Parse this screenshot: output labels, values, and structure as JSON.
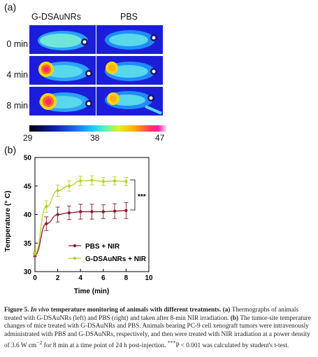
{
  "panel_a": {
    "label": "(a)",
    "columns": [
      "G-DSAuNRs",
      "PBS"
    ],
    "rows": [
      "0 min",
      "4 min",
      "8 min"
    ],
    "colorbar": {
      "min": "29",
      "mid": "38",
      "max": "47"
    },
    "colors": {
      "background": "#1b1dd8",
      "hot": "#ff2a6a",
      "warm": "#ffd21a"
    }
  },
  "panel_b": {
    "label": "(b)",
    "significance": "***"
  },
  "chart_data": {
    "type": "line",
    "xlabel": "Time (min)",
    "ylabel": "Temperature (° C)",
    "xlim": [
      0,
      10
    ],
    "ylim": [
      30,
      50
    ],
    "xticks": [
      "0",
      "2",
      "4",
      "6",
      "8",
      "10"
    ],
    "yticks": [
      "30",
      "35",
      "40",
      "45",
      "50"
    ],
    "legend_position": "lower-right",
    "series": [
      {
        "name": "PBS + NIR",
        "color": "#8b1a2a",
        "x": [
          0,
          1,
          2,
          3,
          4,
          5,
          6,
          7,
          8
        ],
        "y": [
          32.9,
          38.4,
          40.0,
          40.3,
          40.5,
          40.5,
          40.5,
          40.6,
          40.7
        ],
        "err": [
          0.3,
          1.2,
          1.3,
          1.2,
          1.3,
          1.3,
          1.2,
          1.3,
          1.4
        ]
      },
      {
        "name": "G-DSAuNRs + NIR",
        "color": "#b7cf2a",
        "x": [
          0,
          1,
          2,
          3,
          4,
          5,
          6,
          7,
          8
        ],
        "y": [
          33.2,
          41.4,
          44.2,
          45.0,
          45.9,
          46.0,
          45.8,
          45.9,
          45.8
        ],
        "err": [
          0.3,
          1.0,
          1.0,
          0.9,
          0.8,
          0.8,
          0.7,
          0.7,
          0.7
        ]
      }
    ]
  },
  "caption": {
    "figure_label": "Figure 5.",
    "title_italic": "In vivo",
    "title_rest": "temperature monitoring of animals with different treatments.",
    "s1_label": "(a)",
    "s1_text": "Thermographs of animals treated with G-DSAuNRs (left) and PBS (right) and taken after 8-min NIR irradiation.",
    "s2_label": "(b)",
    "s2_text": "The tumor-site temperature changes of mice treated with G-DSAuNRs and PBS. Animals bearing PC-9 cell xenograft tumors were intravenously administrated with PBS and G-DSAuNRs, respectively, and then were treated with NIR irradiation at a power density of 3.6 W cm",
    "s2_sup": "−2",
    "s2_text2": "for 8 min at a time point of 24 h post-injection.",
    "stat_sup": "***",
    "stat_text": "P < 0.001 was calculated by student's t-test."
  }
}
